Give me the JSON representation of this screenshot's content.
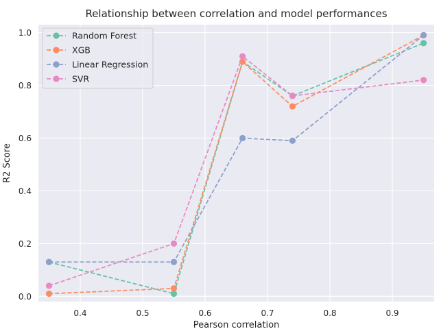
{
  "chart_data": {
    "type": "line",
    "title": "Relationship between correlation and model performances",
    "xlabel": "Pearson correlation",
    "ylabel": "R2 Score",
    "xlim": [
      0.333,
      0.967
    ],
    "ylim": [
      -0.02,
      1.03
    ],
    "xticks": [
      "0.4",
      "0.5",
      "0.6",
      "0.7",
      "0.8",
      "0.9"
    ],
    "yticks": [
      "0.0",
      "0.2",
      "0.4",
      "0.6",
      "0.8",
      "1.0"
    ],
    "grid": true,
    "legend_position": "top-left",
    "x": [
      0.35,
      0.55,
      0.66,
      0.74,
      0.95
    ],
    "series": [
      {
        "name": "Random Forest",
        "color": "#66c2a5",
        "values": [
          0.13,
          0.01,
          0.89,
          0.76,
          0.96
        ]
      },
      {
        "name": "XGB",
        "color": "#fc8d62",
        "values": [
          0.01,
          0.03,
          0.89,
          0.72,
          0.99
        ]
      },
      {
        "name": "Linear Regression",
        "color": "#8da0cb",
        "values": [
          0.13,
          0.13,
          0.6,
          0.59,
          0.99
        ]
      },
      {
        "name": "SVR",
        "color": "#e78ac3",
        "values": [
          0.04,
          0.2,
          0.91,
          0.76,
          0.82
        ]
      }
    ]
  }
}
